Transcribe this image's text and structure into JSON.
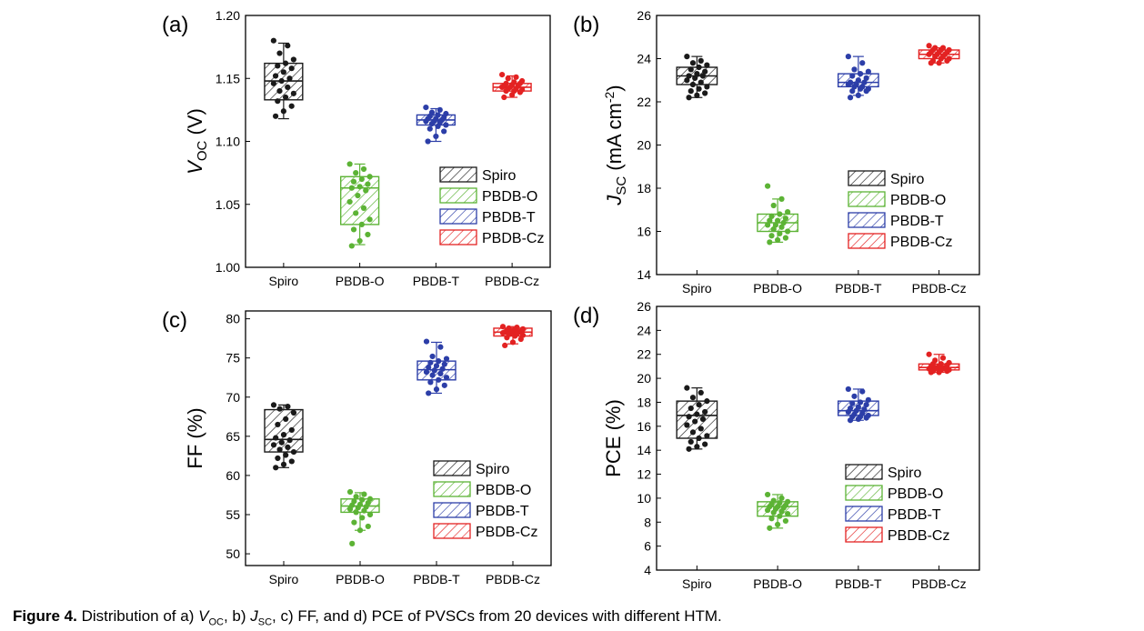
{
  "chart_data": [
    {
      "type": "box",
      "panel_label": "(a)",
      "ylabel_main": "V",
      "ylabel_sub": "OC",
      "ylabel_tail": " (V)",
      "ylim": [
        1.0,
        1.2
      ],
      "ytick_labels": [
        "1.00",
        "1.05",
        "1.10",
        "1.15",
        "1.20"
      ],
      "ytick_values": [
        1.0,
        1.05,
        1.1,
        1.15,
        1.2
      ],
      "categories": [
        "Spiro",
        "PBDB-O",
        "PBDB-T",
        "PBDB-Cz"
      ],
      "boxes": [
        {
          "q1": 1.133,
          "median": 1.148,
          "q3": 1.162,
          "whisker_low": 1.118,
          "whisker_high": 1.178
        },
        {
          "q1": 1.034,
          "median": 1.063,
          "q3": 1.072,
          "whisker_low": 1.018,
          "whisker_high": 1.082
        },
        {
          "q1": 1.113,
          "median": 1.117,
          "q3": 1.121,
          "whisker_low": 1.1,
          "whisker_high": 1.126
        },
        {
          "q1": 1.14,
          "median": 1.143,
          "q3": 1.146,
          "whisker_low": 1.135,
          "whisker_high": 1.152
        }
      ],
      "points": [
        [
          1.18,
          1.176,
          1.17,
          1.165,
          1.162,
          1.16,
          1.158,
          1.155,
          1.152,
          1.15,
          1.148,
          1.146,
          1.143,
          1.14,
          1.138,
          1.135,
          1.132,
          1.128,
          1.124,
          1.12
        ],
        [
          1.082,
          1.078,
          1.075,
          1.072,
          1.07,
          1.068,
          1.066,
          1.064,
          1.063,
          1.061,
          1.057,
          1.052,
          1.047,
          1.043,
          1.038,
          1.034,
          1.03,
          1.026,
          1.021,
          1.017
        ],
        [
          1.127,
          1.125,
          1.123,
          1.122,
          1.121,
          1.12,
          1.119,
          1.118,
          1.118,
          1.117,
          1.116,
          1.116,
          1.115,
          1.114,
          1.113,
          1.112,
          1.11,
          1.108,
          1.104,
          1.1
        ],
        [
          1.153,
          1.151,
          1.15,
          1.148,
          1.147,
          1.146,
          1.146,
          1.145,
          1.144,
          1.144,
          1.143,
          1.143,
          1.142,
          1.142,
          1.141,
          1.14,
          1.14,
          1.139,
          1.137,
          1.135
        ]
      ],
      "legend": [
        "Spiro",
        "PBDB-O",
        "PBDB-T",
        "PBDB-Cz"
      ]
    },
    {
      "type": "box",
      "panel_label": "(b)",
      "ylabel_main": "J",
      "ylabel_sub": "SC",
      "ylabel_tail": " (mA cm",
      "ylabel_sup": "-2",
      "ylabel_end": ")",
      "ylim": [
        14,
        26
      ],
      "ytick_labels": [
        "14",
        "16",
        "18",
        "20",
        "22",
        "24",
        "26"
      ],
      "ytick_values": [
        14,
        16,
        18,
        20,
        22,
        24,
        26
      ],
      "categories": [
        "Spiro",
        "PBDB-O",
        "PBDB-T",
        "PBDB-Cz"
      ],
      "boxes": [
        {
          "q1": 22.8,
          "median": 23.2,
          "q3": 23.6,
          "whisker_low": 22.2,
          "whisker_high": 24.1
        },
        {
          "q1": 16.0,
          "median": 16.4,
          "q3": 16.8,
          "whisker_low": 15.5,
          "whisker_high": 17.5
        },
        {
          "q1": 22.7,
          "median": 22.9,
          "q3": 23.3,
          "whisker_low": 22.3,
          "whisker_high": 24.1
        },
        {
          "q1": 24.0,
          "median": 24.2,
          "q3": 24.4,
          "whisker_low": 23.8,
          "whisker_high": 24.5
        }
      ],
      "points": [
        [
          24.1,
          23.9,
          23.8,
          23.7,
          23.6,
          23.5,
          23.4,
          23.3,
          23.2,
          23.2,
          23.1,
          23.0,
          22.9,
          22.8,
          22.7,
          22.6,
          22.5,
          22.4,
          22.3,
          22.2
        ],
        [
          18.1,
          17.5,
          17.2,
          16.9,
          16.8,
          16.7,
          16.6,
          16.5,
          16.5,
          16.4,
          16.3,
          16.3,
          16.2,
          16.1,
          16.0,
          15.9,
          15.8,
          15.7,
          15.6,
          15.5
        ],
        [
          24.1,
          23.8,
          23.5,
          23.4,
          23.3,
          23.2,
          23.1,
          23.0,
          22.9,
          22.9,
          22.8,
          22.8,
          22.7,
          22.7,
          22.6,
          22.6,
          22.5,
          22.5,
          22.3,
          22.2
        ],
        [
          24.6,
          24.5,
          24.5,
          24.4,
          24.4,
          24.4,
          24.3,
          24.3,
          24.3,
          24.2,
          24.2,
          24.2,
          24.1,
          24.1,
          24.0,
          24.0,
          23.9,
          23.9,
          23.8,
          23.8
        ]
      ],
      "legend": [
        "Spiro",
        "PBDB-O",
        "PBDB-T",
        "PBDB-Cz"
      ]
    },
    {
      "type": "box",
      "panel_label": "(c)",
      "ylabel_main": "FF (%)",
      "ylim": [
        48.5,
        81
      ],
      "ytick_labels": [
        "50",
        "55",
        "60",
        "65",
        "70",
        "75",
        "80"
      ],
      "ytick_values": [
        50,
        55,
        60,
        65,
        70,
        75,
        80
      ],
      "categories": [
        "Spiro",
        "PBDB-O",
        "PBDB-T",
        "PBDB-Cz"
      ],
      "boxes": [
        {
          "q1": 63.0,
          "median": 64.6,
          "q3": 68.4,
          "whisker_low": 61.0,
          "whisker_high": 69.0
        },
        {
          "q1": 55.3,
          "median": 56.1,
          "q3": 57.0,
          "whisker_low": 53.0,
          "whisker_high": 57.8
        },
        {
          "q1": 72.2,
          "median": 73.5,
          "q3": 74.6,
          "whisker_low": 70.5,
          "whisker_high": 77.0
        },
        {
          "q1": 77.8,
          "median": 78.3,
          "q3": 78.8,
          "whisker_low": 76.8,
          "whisker_high": 79.0
        }
      ],
      "points": [
        [
          69.0,
          68.8,
          68.5,
          68.0,
          67.2,
          66.5,
          65.8,
          65.2,
          64.8,
          64.5,
          64.2,
          63.9,
          63.6,
          63.3,
          63.0,
          62.6,
          62.2,
          61.8,
          61.4,
          61.0
        ],
        [
          57.9,
          57.6,
          57.3,
          57.0,
          56.9,
          56.7,
          56.5,
          56.3,
          56.2,
          56.0,
          55.9,
          55.7,
          55.5,
          55.3,
          55.0,
          54.6,
          54.0,
          53.5,
          53.0,
          51.3
        ],
        [
          77.1,
          76.4,
          75.2,
          74.9,
          74.6,
          74.4,
          74.2,
          74.0,
          73.8,
          73.6,
          73.4,
          73.2,
          73.0,
          72.8,
          72.5,
          72.2,
          71.9,
          71.5,
          71.0,
          70.5
        ],
        [
          79.0,
          78.9,
          78.8,
          78.7,
          78.6,
          78.5,
          78.4,
          78.4,
          78.3,
          78.3,
          78.2,
          78.2,
          78.1,
          78.0,
          77.9,
          77.8,
          77.6,
          77.4,
          77.0,
          76.6
        ]
      ],
      "legend": [
        "Spiro",
        "PBDB-O",
        "PBDB-T",
        "PBDB-Cz"
      ]
    },
    {
      "type": "box",
      "panel_label": "(d)",
      "ylabel_main": "PCE (%)",
      "ylim": [
        4,
        26
      ],
      "ytick_labels": [
        "4",
        "6",
        "8",
        "10",
        "12",
        "14",
        "16",
        "18",
        "20",
        "22",
        "24",
        "26"
      ],
      "ytick_values": [
        4,
        6,
        8,
        10,
        12,
        14,
        16,
        18,
        20,
        22,
        24,
        26
      ],
      "categories": [
        "Spiro",
        "PBDB-O",
        "PBDB-T",
        "PBDB-Cz"
      ],
      "boxes": [
        {
          "q1": 15.0,
          "median": 16.9,
          "q3": 18.1,
          "whisker_low": 14.1,
          "whisker_high": 19.2
        },
        {
          "q1": 8.5,
          "median": 9.3,
          "q3": 9.7,
          "whisker_low": 7.5,
          "whisker_high": 10.3
        },
        {
          "q1": 16.9,
          "median": 17.3,
          "q3": 18.1,
          "whisker_low": 16.5,
          "whisker_high": 19.1
        },
        {
          "q1": 20.7,
          "median": 20.9,
          "q3": 21.2,
          "whisker_low": 20.5,
          "whisker_high": 22.0
        }
      ],
      "points": [
        [
          19.2,
          18.8,
          18.4,
          18.1,
          17.8,
          17.5,
          17.2,
          17.0,
          16.8,
          16.6,
          16.4,
          16.1,
          15.8,
          15.5,
          15.2,
          15.0,
          14.7,
          14.5,
          14.3,
          14.1
        ],
        [
          10.3,
          10.0,
          9.8,
          9.7,
          9.6,
          9.5,
          9.4,
          9.3,
          9.3,
          9.2,
          9.1,
          9.0,
          8.9,
          8.8,
          8.7,
          8.5,
          8.3,
          8.1,
          7.8,
          7.5
        ],
        [
          19.1,
          18.9,
          18.5,
          18.2,
          18.0,
          17.9,
          17.8,
          17.6,
          17.5,
          17.4,
          17.3,
          17.2,
          17.1,
          17.0,
          16.9,
          16.8,
          16.8,
          16.7,
          16.6,
          16.5
        ],
        [
          22.0,
          21.7,
          21.5,
          21.3,
          21.2,
          21.2,
          21.1,
          21.0,
          21.0,
          20.9,
          20.9,
          20.8,
          20.8,
          20.8,
          20.7,
          20.7,
          20.6,
          20.6,
          20.5,
          20.5
        ]
      ],
      "legend": [
        "Spiro",
        "PBDB-O",
        "PBDB-T",
        "PBDB-Cz"
      ]
    }
  ],
  "series_colors": {
    "Spiro": "#1a1a1a",
    "PBDB-O": "#5cb335",
    "PBDB-T": "#2c3ea8",
    "PBDB-Cz": "#e32222"
  },
  "caption": {
    "label": "Figure 4.",
    "text_1": " Distribution of a) ",
    "v": "V",
    "v_sub": "OC",
    "text_2": ", b) ",
    "j": "J",
    "j_sub": "SC",
    "text_3": ", c) FF, and d) PCE of PVSCs from 20 devices with different HTM."
  }
}
